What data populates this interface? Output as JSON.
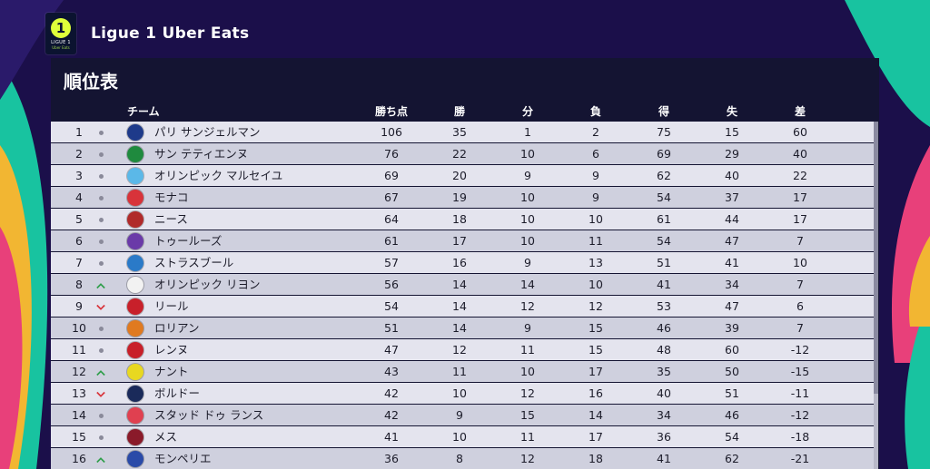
{
  "header": {
    "league_title": "Ligue 1 Uber Eats",
    "logo_text": "LIGUE 1",
    "logo_subtext": "Uber Eats"
  },
  "panel": {
    "title": "順位表"
  },
  "columns": {
    "team": "チーム",
    "pts": "勝ち点",
    "w": "勝",
    "d": "分",
    "l": "負",
    "gf": "得",
    "ga": "失",
    "gd": "差"
  },
  "colors": {
    "up": "#2e9e4a",
    "down": "#d8333a"
  },
  "rows": [
    {
      "rank": "1",
      "trend": "same",
      "team": "パリ サンジェルマン",
      "crest": "#1e3a8a",
      "pts": "106",
      "w": "35",
      "d": "1",
      "l": "2",
      "gf": "75",
      "ga": "15",
      "gd": "60"
    },
    {
      "rank": "2",
      "trend": "same",
      "team": "サン テティエンヌ",
      "crest": "#1f8a3e",
      "pts": "76",
      "w": "22",
      "d": "10",
      "l": "6",
      "gf": "69",
      "ga": "29",
      "gd": "40"
    },
    {
      "rank": "3",
      "trend": "same",
      "team": "オリンピック マルセイユ",
      "crest": "#5bb8e8",
      "pts": "69",
      "w": "20",
      "d": "9",
      "l": "9",
      "gf": "62",
      "ga": "40",
      "gd": "22"
    },
    {
      "rank": "4",
      "trend": "same",
      "team": "モナコ",
      "crest": "#d8333a",
      "pts": "67",
      "w": "19",
      "d": "10",
      "l": "9",
      "gf": "54",
      "ga": "37",
      "gd": "17"
    },
    {
      "rank": "5",
      "trend": "same",
      "team": "ニース",
      "crest": "#b02a2a",
      "pts": "64",
      "w": "18",
      "d": "10",
      "l": "10",
      "gf": "61",
      "ga": "44",
      "gd": "17"
    },
    {
      "rank": "6",
      "trend": "same",
      "team": "トゥールーズ",
      "crest": "#6a3aa8",
      "pts": "61",
      "w": "17",
      "d": "10",
      "l": "11",
      "gf": "54",
      "ga": "47",
      "gd": "7"
    },
    {
      "rank": "7",
      "trend": "same",
      "team": "ストラスブール",
      "crest": "#2a7ac8",
      "pts": "57",
      "w": "16",
      "d": "9",
      "l": "13",
      "gf": "51",
      "ga": "41",
      "gd": "10"
    },
    {
      "rank": "8",
      "trend": "up",
      "team": "オリンピック リヨン",
      "crest": "#f2f2f2",
      "pts": "56",
      "w": "14",
      "d": "14",
      "l": "10",
      "gf": "41",
      "ga": "34",
      "gd": "7"
    },
    {
      "rank": "9",
      "trend": "down",
      "team": "リール",
      "crest": "#c8202a",
      "pts": "54",
      "w": "14",
      "d": "12",
      "l": "12",
      "gf": "53",
      "ga": "47",
      "gd": "6"
    },
    {
      "rank": "10",
      "trend": "same",
      "team": "ロリアン",
      "crest": "#e07a20",
      "pts": "51",
      "w": "14",
      "d": "9",
      "l": "15",
      "gf": "46",
      "ga": "39",
      "gd": "7"
    },
    {
      "rank": "11",
      "trend": "same",
      "team": "レンヌ",
      "crest": "#c8202a",
      "pts": "47",
      "w": "12",
      "d": "11",
      "l": "15",
      "gf": "48",
      "ga": "60",
      "gd": "-12"
    },
    {
      "rank": "12",
      "trend": "up",
      "team": "ナント",
      "crest": "#e8d820",
      "pts": "43",
      "w": "11",
      "d": "10",
      "l": "17",
      "gf": "35",
      "ga": "50",
      "gd": "-15"
    },
    {
      "rank": "13",
      "trend": "down",
      "team": "ボルドー",
      "crest": "#1a2a5a",
      "pts": "42",
      "w": "10",
      "d": "12",
      "l": "16",
      "gf": "40",
      "ga": "51",
      "gd": "-11"
    },
    {
      "rank": "14",
      "trend": "same",
      "team": "スタッド ドゥ ランス",
      "crest": "#e04050",
      "pts": "42",
      "w": "9",
      "d": "15",
      "l": "14",
      "gf": "34",
      "ga": "46",
      "gd": "-12"
    },
    {
      "rank": "15",
      "trend": "same",
      "team": "メス",
      "crest": "#8a1a2a",
      "pts": "41",
      "w": "10",
      "d": "11",
      "l": "17",
      "gf": "36",
      "ga": "54",
      "gd": "-18"
    },
    {
      "rank": "16",
      "trend": "up",
      "team": "モンペリエ",
      "crest": "#2a4aa8",
      "pts": "36",
      "w": "8",
      "d": "12",
      "l": "18",
      "gf": "41",
      "ga": "62",
      "gd": "-21"
    }
  ]
}
